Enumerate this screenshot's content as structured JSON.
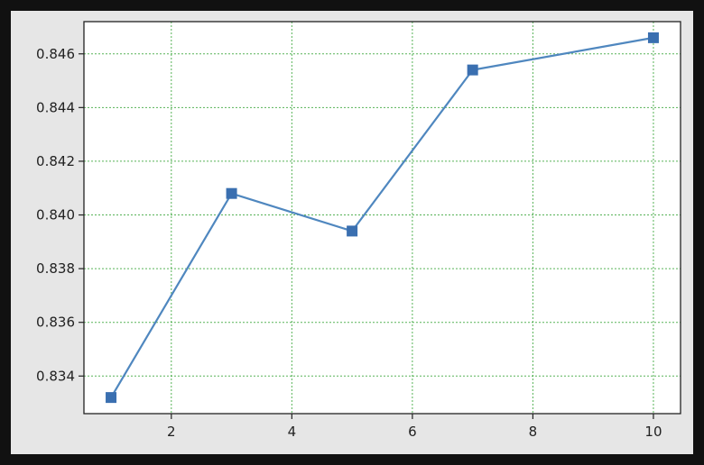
{
  "colors": {
    "page_background": "#111111",
    "figure_background": "#e6e6e6",
    "plot_background": "#ffffff",
    "line": "#4f87bf",
    "marker": "#3a6fb0",
    "grid": "#2ca02c",
    "axis": "#222222"
  },
  "chart_data": {
    "type": "line",
    "title": "",
    "xlabel": "",
    "ylabel": "",
    "x": [
      1,
      3,
      5,
      7,
      10
    ],
    "series": [
      {
        "values": [
          0.8332,
          0.8408,
          0.8394,
          0.8454,
          0.8466
        ],
        "marker": "square",
        "color": "#4f87bf"
      }
    ],
    "xlim": [
      0.55,
      10.45
    ],
    "ylim": [
      0.8326,
      0.8472
    ],
    "xticks": [
      2,
      4,
      6,
      8,
      10
    ],
    "xtick_labels": [
      "2",
      "4",
      "6",
      "8",
      "10"
    ],
    "yticks": [
      0.834,
      0.836,
      0.838,
      0.84,
      0.842,
      0.844,
      0.846
    ],
    "ytick_labels": [
      "0.834",
      "0.836",
      "0.838",
      "0.840",
      "0.842",
      "0.844",
      "0.846"
    ],
    "grid": true,
    "grid_style": "dotted",
    "legend": "none"
  }
}
